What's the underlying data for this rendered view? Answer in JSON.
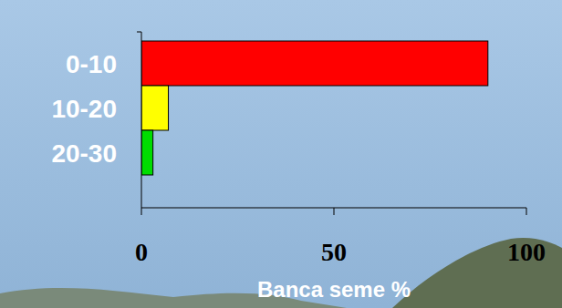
{
  "chart_data": {
    "type": "bar",
    "orientation": "horizontal",
    "categories": [
      "0-10",
      "10-20",
      "20-30"
    ],
    "values": [
      90,
      7,
      3
    ],
    "colors": [
      "#ff0000",
      "#ffff00",
      "#00dd00"
    ],
    "xlim": [
      0,
      100
    ],
    "xticks": [
      0,
      50,
      100
    ],
    "x_label": "Banca seme %",
    "grid": false
  }
}
